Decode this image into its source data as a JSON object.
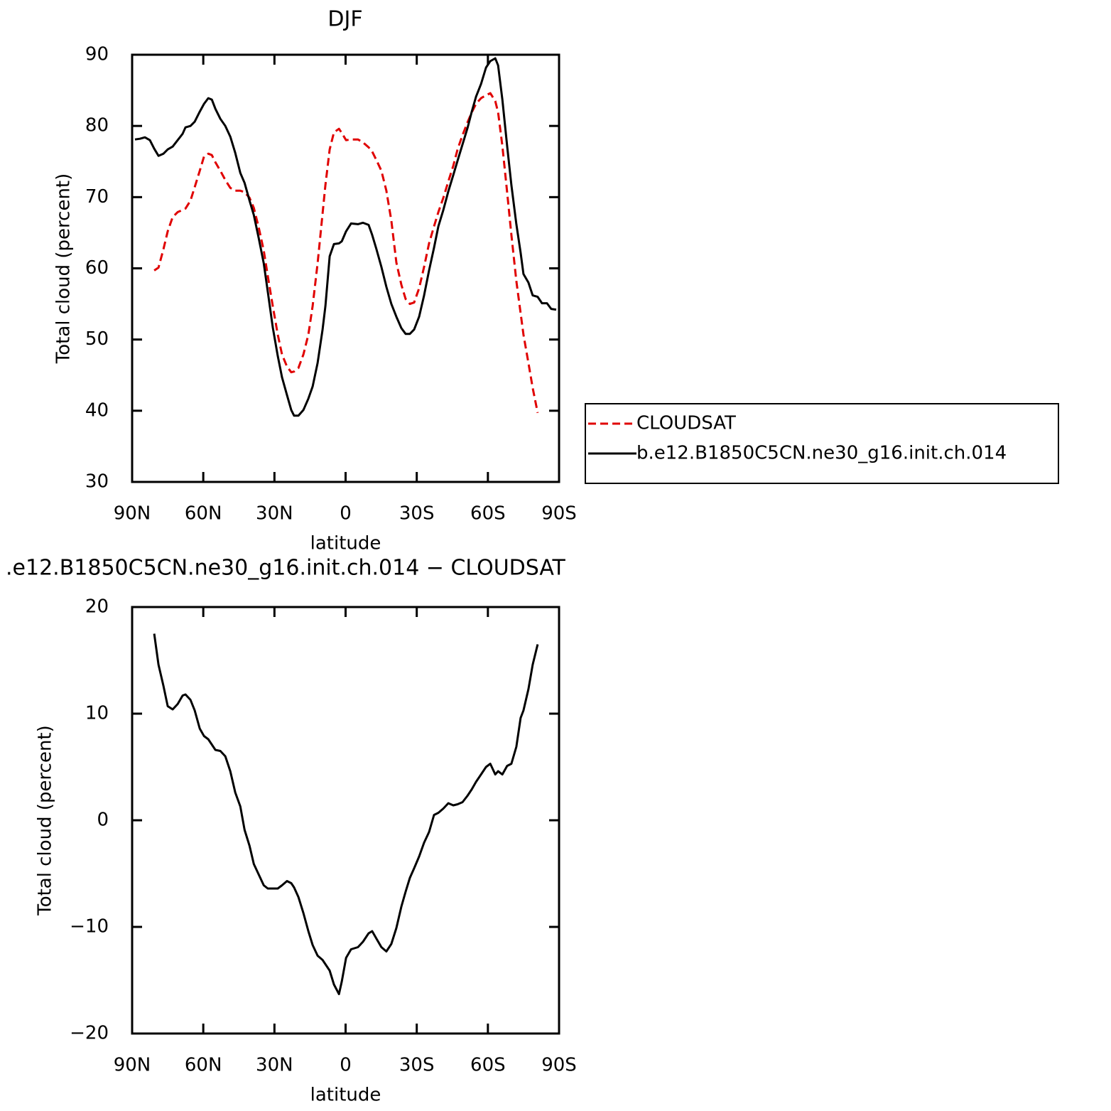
{
  "chart_data": [
    {
      "type": "line",
      "title": "DJF",
      "xlabel": "latitude",
      "ylabel": "Total cloud (percent)",
      "xlim": [
        90,
        -90
      ],
      "xticks": [
        {
          "value": 90,
          "label": "90N"
        },
        {
          "value": 60,
          "label": "60N"
        },
        {
          "value": 30,
          "label": "30N"
        },
        0,
        {
          "value": -30,
          "label": "30S"
        },
        {
          "value": -60,
          "label": "60S"
        },
        {
          "value": -90,
          "label": "90S"
        }
      ],
      "ylim": [
        30,
        90
      ],
      "yticks": [
        30,
        40,
        50,
        60,
        70,
        80,
        90
      ],
      "legend": "right",
      "x": [
        88.8,
        86.7,
        84.6,
        82.5,
        80.7,
        78.9,
        76.8,
        75.0,
        72.9,
        70.8,
        68.7,
        67.5,
        65.4,
        63.6,
        61.5,
        59.7,
        57.9,
        56.4,
        54.9,
        52.8,
        50.7,
        48.6,
        46.5,
        44.4,
        42.6,
        40.5,
        38.7,
        36.6,
        34.5,
        32.8,
        30.7,
        28.6,
        26.8,
        24.7,
        22.9,
        21.7,
        19.9,
        17.8,
        15.7,
        13.9,
        11.8,
        9.7,
        8.5,
        6.7,
        4.9,
        2.8,
        1.6,
        -0.2,
        -2.3,
        -5.2,
        -7.3,
        -9.7,
        -11.2,
        -13.0,
        -15.1,
        -17.2,
        -19.3,
        -21.4,
        -23.5,
        -25.3,
        -27.1,
        -28.9,
        -31.0,
        -33.1,
        -35.2,
        -37.3,
        -39.1,
        -41.2,
        -43.3,
        -45.4,
        -47.2,
        -49.3,
        -51.4,
        -53.2,
        -55.0,
        -57.1,
        -59.2,
        -61.0,
        -63.1,
        -64.3,
        -66.1,
        -68.1,
        -69.9,
        -72.0,
        -73.8,
        -75.0,
        -77.1,
        -78.9,
        -81.0,
        -82.8,
        -84.9,
        -86.7,
        -88.8
      ],
      "series": [
        {
          "name": "CLOUDSAT",
          "color": "#e00000",
          "linestyle": "dashed",
          "values": [
            null,
            null,
            null,
            null,
            59.7,
            60.1,
            62.7,
            65.2,
            67.2,
            67.9,
            68.2,
            68.4,
            69.5,
            71.4,
            73.7,
            75.7,
            76.1,
            75.9,
            74.9,
            73.7,
            72.4,
            71.3,
            70.9,
            70.9,
            70.7,
            69.9,
            68.5,
            65.7,
            62.5,
            58.9,
            54.7,
            50.7,
            47.9,
            46.2,
            45.4,
            45.5,
            46.0,
            47.9,
            50.7,
            54.7,
            60.7,
            67.7,
            71.7,
            76.7,
            79.1,
            79.6,
            79.0,
            78.0,
            78.1,
            78.1,
            77.7,
            77.0,
            76.4,
            75.2,
            73.7,
            70.9,
            66.7,
            60.8,
            57.7,
            55.7,
            55.0,
            55.2,
            57.2,
            60.2,
            63.5,
            65.9,
            67.9,
            69.9,
            72.2,
            74.4,
            76.7,
            78.7,
            80.5,
            81.9,
            83.1,
            83.9,
            84.3,
            84.6,
            83.5,
            81.9,
            77.2,
            70.7,
            64.7,
            58.2,
            53.7,
            50.7,
            46.7,
            43.2,
            39.7,
            null,
            null,
            null,
            null
          ]
        },
        {
          "name": "b.e12.B1850C5CN.ne30_g16.init.ch.014",
          "color": "#000000",
          "linestyle": "solid",
          "values": [
            78.1,
            78.2,
            78.4,
            78.0,
            76.8,
            75.8,
            76.1,
            76.7,
            77.1,
            78.0,
            78.9,
            79.8,
            80.0,
            80.6,
            82.0,
            83.1,
            83.9,
            83.7,
            82.4,
            81.0,
            80.0,
            78.5,
            76.2,
            73.4,
            72.0,
            69.5,
            67.5,
            64.2,
            60.7,
            56.7,
            51.7,
            47.7,
            44.7,
            42.2,
            40.1,
            39.3,
            39.3,
            40.1,
            41.7,
            43.4,
            46.7,
            51.4,
            54.7,
            61.7,
            63.4,
            63.5,
            63.8,
            65.2,
            66.3,
            66.2,
            66.4,
            66.1,
            64.7,
            62.7,
            60.2,
            57.4,
            55.0,
            53.2,
            51.6,
            50.8,
            50.8,
            51.4,
            53.2,
            56.2,
            59.7,
            62.9,
            65.9,
            68.2,
            70.8,
            73.1,
            75.1,
            77.4,
            79.7,
            82.0,
            84.1,
            85.9,
            88.2,
            89.1,
            89.5,
            88.5,
            83.7,
            77.2,
            71.7,
            66.2,
            62.2,
            59.2,
            58.0,
            56.2,
            56.0,
            55.1,
            55.1,
            54.3,
            54.2
          ]
        }
      ]
    },
    {
      "type": "line",
      "title": ".e12.B1850C5CN.ne30_g16.init.ch.014 − CLOUDSAT",
      "xlabel": "latitude",
      "ylabel": "Total cloud (percent)",
      "xlim": [
        90,
        -90
      ],
      "xticks": [
        {
          "value": 90,
          "label": "90N"
        },
        {
          "value": 60,
          "label": "60N"
        },
        {
          "value": 30,
          "label": "30N"
        },
        0,
        {
          "value": -30,
          "label": "30S"
        },
        {
          "value": -60,
          "label": "60S"
        },
        {
          "value": -90,
          "label": "90S"
        }
      ],
      "ylim": [
        -20,
        20
      ],
      "yticks": [
        {
          "value": -20,
          "label": "−20"
        },
        {
          "value": -10,
          "label": "−10"
        },
        0,
        10,
        20
      ],
      "x": [
        80.7,
        78.9,
        76.8,
        75.0,
        72.9,
        70.8,
        68.7,
        67.5,
        65.4,
        63.6,
        61.5,
        59.7,
        57.9,
        56.4,
        54.9,
        52.8,
        50.7,
        48.6,
        46.5,
        44.4,
        42.6,
        40.5,
        38.7,
        36.6,
        34.5,
        32.8,
        30.7,
        28.6,
        26.8,
        24.7,
        22.9,
        21.7,
        19.9,
        17.8,
        15.7,
        13.9,
        11.8,
        9.7,
        8.5,
        6.7,
        4.9,
        2.8,
        1.6,
        -0.2,
        -2.3,
        -5.2,
        -7.3,
        -9.7,
        -11.2,
        -13.0,
        -15.1,
        -17.2,
        -19.3,
        -21.4,
        -23.5,
        -25.3,
        -27.1,
        -28.9,
        -31.0,
        -33.1,
        -35.2,
        -37.3,
        -39.1,
        -41.2,
        -43.3,
        -45.4,
        -47.2,
        -49.3,
        -51.4,
        -53.2,
        -55.0,
        -57.1,
        -59.2,
        -61.0,
        -63.1,
        -64.3,
        -66.1,
        -68.1,
        -69.9,
        -72.0,
        -73.8,
        -75.0,
        -77.1,
        -78.9,
        -81.0
      ],
      "series": [
        {
          "color": "#000000",
          "linestyle": "solid",
          "values": [
            17.5,
            14.6,
            12.6,
            10.7,
            10.4,
            10.9,
            11.7,
            11.8,
            11.3,
            10.3,
            8.6,
            7.9,
            7.6,
            7.1,
            6.6,
            6.5,
            6.0,
            4.6,
            2.6,
            1.3,
            -0.9,
            -2.4,
            -4.1,
            -5.1,
            -6.1,
            -6.4,
            -6.4,
            -6.4,
            -6.1,
            -5.7,
            -5.9,
            -6.3,
            -7.2,
            -8.7,
            -10.4,
            -11.7,
            -12.7,
            -13.1,
            -13.5,
            -14.1,
            -15.4,
            -16.3,
            -15.1,
            -12.9,
            -12.1,
            -11.9,
            -11.4,
            -10.6,
            -10.4,
            -11.1,
            -11.9,
            -12.3,
            -11.6,
            -10.1,
            -8.1,
            -6.7,
            -5.4,
            -4.5,
            -3.4,
            -2.1,
            -1.1,
            0.5,
            0.7,
            1.1,
            1.6,
            1.4,
            1.5,
            1.7,
            2.3,
            2.9,
            3.6,
            4.3,
            5.0,
            5.3,
            4.3,
            4.6,
            4.3,
            5.1,
            5.3,
            6.9,
            9.6,
            10.3,
            12.3,
            14.6,
            16.5
          ]
        }
      ]
    }
  ]
}
